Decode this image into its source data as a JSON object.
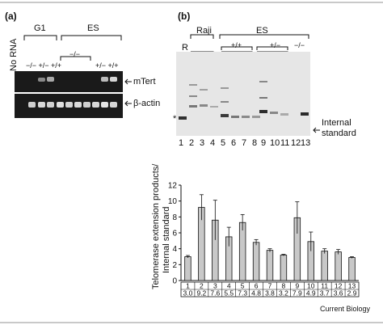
{
  "panel_a": {
    "letter": "(a)",
    "no_rna": "No RNA",
    "g1": "G1",
    "es": "ES",
    "genotypes_left": "−/− +/− +/+",
    "genotypes_mid": "−/−",
    "genotypes_right": "+/− +/+",
    "band_mtert": "mTert",
    "band_actin": "β-actin"
  },
  "panel_b": {
    "letter": "(b)",
    "raji": "Raji",
    "es": "ES",
    "pp": "+/+",
    "pm": "+/−",
    "mm": "−/−",
    "r": "R",
    "star": "*",
    "internal_standard_1": "Internal",
    "internal_standard_2": "standard",
    "lane_numbers": [
      "1",
      "2",
      "3",
      "4",
      "5",
      "6",
      "7",
      "8",
      "9",
      "10",
      "11",
      "12",
      "13"
    ]
  },
  "chart_data": {
    "type": "bar",
    "categories": [
      "1",
      "2",
      "3",
      "4",
      "5",
      "6",
      "7",
      "8",
      "9",
      "10",
      "11",
      "12",
      "13"
    ],
    "values": [
      3.0,
      9.2,
      7.6,
      5.5,
      7.3,
      4.8,
      3.8,
      3.2,
      7.9,
      4.9,
      3.7,
      3.6,
      2.9
    ],
    "errors": [
      0.15,
      1.6,
      2.5,
      1.2,
      1.0,
      0.35,
      0.2,
      0.1,
      2.0,
      1.2,
      0.3,
      0.3,
      0.1
    ],
    "ylabel": "Telomerase extension products/ Internal standard",
    "ylabel_line1": "Telomerase extension products/",
    "ylabel_line2": "Internal standard",
    "ylim": [
      0,
      12
    ],
    "yticks": [
      "0",
      "2",
      "4",
      "6",
      "8",
      "10",
      "12"
    ],
    "value_labels": [
      "3.0",
      "9.2",
      "7.6",
      "5.5",
      "7.3",
      "4.8",
      "3.8",
      "3.2",
      "7.9",
      "4.9",
      "3.7",
      "3.6",
      "2.9"
    ],
    "bar_color": "#c8c8c8"
  },
  "credit": "Current Biology"
}
